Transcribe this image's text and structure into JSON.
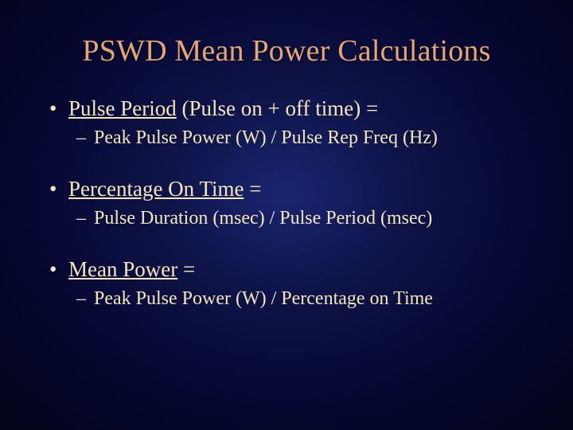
{
  "slide": {
    "title": "PSWD Mean Power Calculations",
    "title_color": "#e8a574",
    "text_color": "#f5e5b8",
    "background_gradient": [
      "#1a2570",
      "#0e1448",
      "#050730",
      "#020418"
    ],
    "title_fontsize": 38,
    "bullet_main_fontsize": 27,
    "bullet_sub_fontsize": 24,
    "font_family": "Times New Roman",
    "bullets": [
      {
        "main_underlined": "Pulse Period",
        "main_rest": " (Pulse on + off time) =",
        "sub": "Peak Pulse Power (W) / Pulse Rep Freq (Hz)"
      },
      {
        "main_underlined": "Percentage On Time",
        "main_rest": " =",
        "sub": "Pulse Duration (msec) / Pulse Period (msec)"
      },
      {
        "main_underlined": "Mean Power",
        "main_rest": " =",
        "sub": "Peak Pulse Power (W) / Percentage on Time"
      }
    ]
  }
}
